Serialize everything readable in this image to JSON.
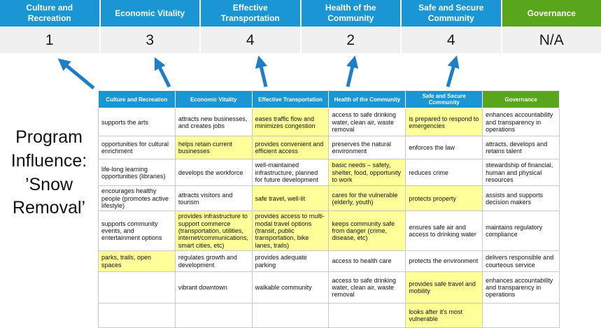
{
  "colors": {
    "header_blue": "#1A96D4",
    "header_green": "#59A51C",
    "highlight_yellow": "#FFFF99",
    "score_bg": "#F0F0F1",
    "arrow_blue": "#1F7EC8"
  },
  "program_title": "Program Influence: ’Snow Removal’",
  "banner": {
    "columns": [
      {
        "label": "Culture and Recreation",
        "score": "1",
        "style": "blue"
      },
      {
        "label": "Economic Vitality",
        "score": "3",
        "style": "blue"
      },
      {
        "label": "Effective Transportation",
        "score": "4",
        "style": "blue"
      },
      {
        "label": "Health of the Community",
        "score": "2",
        "style": "blue"
      },
      {
        "label": "Safe and Secure Community",
        "score": "4",
        "style": "blue"
      },
      {
        "label": "Governance",
        "score": "N/A",
        "style": "green"
      }
    ]
  },
  "matrix": {
    "headers": [
      {
        "label": "Culture and Recreation",
        "style": "blue"
      },
      {
        "label": "Economic Vitality",
        "style": "blue"
      },
      {
        "label": "Effective Transportation",
        "style": "blue"
      },
      {
        "label": "Health of the Community",
        "style": "blue"
      },
      {
        "label": "Safe and Secure Community",
        "style": "blue"
      },
      {
        "label": "Governance",
        "style": "green"
      }
    ],
    "rows": [
      [
        {
          "text": "supports the arts",
          "highlight": false
        },
        {
          "text": "attracts new businesses, and creates jobs",
          "highlight": false
        },
        {
          "text": "eases traffic flow and minimizes congestion",
          "highlight": true
        },
        {
          "text": "access to safe drinking water, clean air, waste removal",
          "highlight": false
        },
        {
          "text": "is prepared to respond to emergencies",
          "highlight": true
        },
        {
          "text": "enhances accountability and transparency in operations",
          "highlight": false
        }
      ],
      [
        {
          "text": "opportunities for cultural enrichment",
          "highlight": false
        },
        {
          "text": "helps retain current businesses",
          "highlight": true
        },
        {
          "text": "provides convenient and efficient access",
          "highlight": true
        },
        {
          "text": "preserves the natural environment",
          "highlight": false
        },
        {
          "text": "enforces the law",
          "highlight": false
        },
        {
          "text": "attracts, develops and retains talent",
          "highlight": false
        }
      ],
      [
        {
          "text": "life-long learning opportunities (libraries)",
          "highlight": false
        },
        {
          "text": "develops the workforce",
          "highlight": false
        },
        {
          "text": "well-maintained infrastructure, planned for future development",
          "highlight": false
        },
        {
          "text": "basic needs – safety, shelter, food, opportunity to work",
          "highlight": true
        },
        {
          "text": "reduces crime",
          "highlight": false
        },
        {
          "text": "stewardship of financial, human and physical resources",
          "highlight": false
        }
      ],
      [
        {
          "text": "encourages healthy people (promotes active lifestyle)",
          "highlight": false
        },
        {
          "text": "attracts visitors and tourism",
          "highlight": false
        },
        {
          "text": "safe travel, well-lit",
          "highlight": true
        },
        {
          "text": "cares for the vulnerable (elderly, youth)",
          "highlight": true
        },
        {
          "text": "protects property",
          "highlight": true
        },
        {
          "text": "assists and supports decision makers",
          "highlight": false
        }
      ],
      [
        {
          "text": "supports community events, and entertainment options",
          "highlight": false
        },
        {
          "text": "provides infrastructure to support commerce (transportation, utilities, internet/communications, smart cities, etc)",
          "highlight": true
        },
        {
          "text": "provides access to multi-modal travel options (transit, public transportation, bike lanes, trails)",
          "highlight": true
        },
        {
          "text": "keeps community safe from danger (crime, disease, etc)",
          "highlight": true
        },
        {
          "text": "ensures safe air and access to drinking water",
          "highlight": false
        },
        {
          "text": "maintains regulatory compliance",
          "highlight": false
        }
      ],
      [
        {
          "text": "parks, trails, open spaces",
          "highlight": true
        },
        {
          "text": "regulates growth and development",
          "highlight": false
        },
        {
          "text": "provides adequate parking",
          "highlight": false
        },
        {
          "text": "access to health care",
          "highlight": false
        },
        {
          "text": "protects the environment",
          "highlight": false
        },
        {
          "text": "delivers responsible and courteous service",
          "highlight": false
        }
      ],
      [
        {
          "text": "",
          "highlight": false
        },
        {
          "text": "vibrant downtown",
          "highlight": false
        },
        {
          "text": "walkable community",
          "highlight": false
        },
        {
          "text": "access to safe drinking water, clean air, waste removal",
          "highlight": false
        },
        {
          "text": "provides safe travel and mobility",
          "highlight": true
        },
        {
          "text": "enhances accountability and transparency in operations",
          "highlight": false
        }
      ],
      [
        {
          "text": "",
          "highlight": false
        },
        {
          "text": "",
          "highlight": false
        },
        {
          "text": "",
          "highlight": false
        },
        {
          "text": "",
          "highlight": false
        },
        {
          "text": "looks after it's most vulnerable",
          "highlight": true
        },
        {
          "text": "",
          "highlight": false
        }
      ]
    ]
  }
}
